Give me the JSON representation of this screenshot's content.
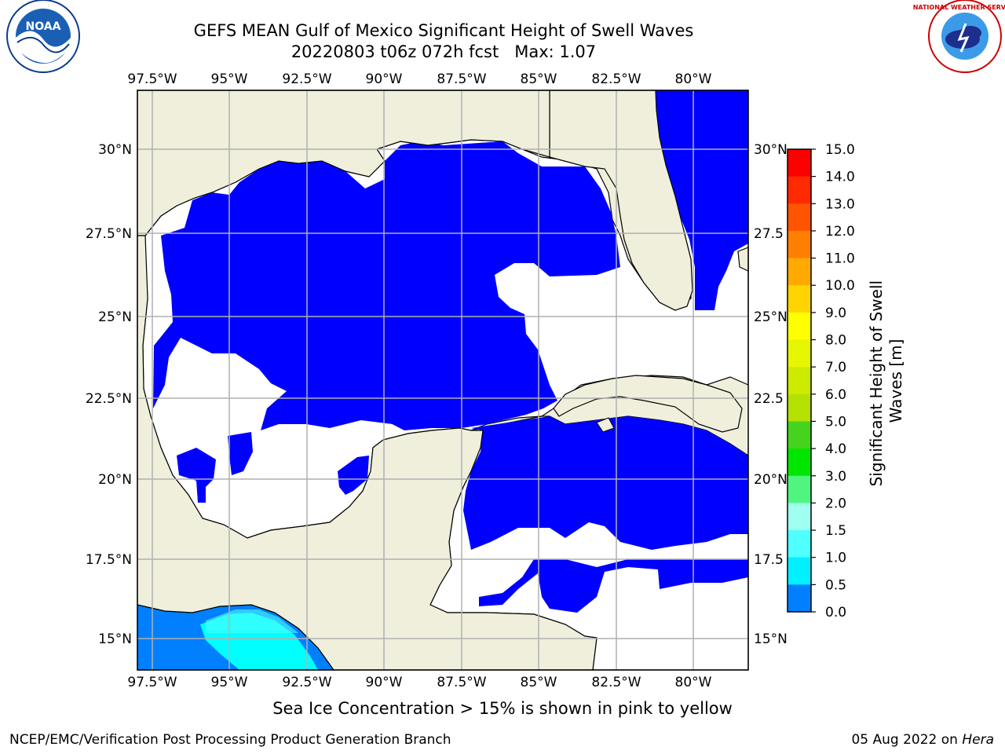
{
  "header": {
    "title": "GEFS MEAN Gulf of Mexico Significant Height of Swell Waves",
    "subtitle": "20220803 t06z 072h fcst   Max: 1.07"
  },
  "logos": {
    "left": "noaa-logo",
    "left_text": "NOAA",
    "right": "nws-logo",
    "right_text": "NATIONAL WEATHER SERVICE"
  },
  "map": {
    "lon_labels": [
      "97.5°W",
      "95°W",
      "92.5°W",
      "90°W",
      "87.5°W",
      "85°W",
      "82.5°W",
      "80°W"
    ],
    "lat_labels_left": [
      "30°N",
      "27.5°N",
      "25°N",
      "22.5°N",
      "20°N",
      "17.5°N",
      "15°N"
    ],
    "lat_labels_right": [
      "30°N",
      "27.5",
      "25°N",
      "22.5",
      "20°N",
      "17.5",
      "15°N"
    ],
    "colors": {
      "land": "#efefdc",
      "ocean_fill": "#0000ff",
      "grid": "#b0b0b0"
    }
  },
  "colorbar": {
    "label_line1": "Significant Height of Swell",
    "label_line2": "Waves [m]",
    "ticks": [
      "15.0",
      "14.0",
      "13.0",
      "12.0",
      "11.0",
      "10.0",
      "9.0",
      "8.0",
      "7.0",
      "6.0",
      "5.0",
      "4.0",
      "3.0",
      "2.0",
      "1.5",
      "1.0",
      "0.5",
      "0.0"
    ],
    "colors": [
      "#ff0000",
      "#ff2a00",
      "#ff5500",
      "#ff8000",
      "#ffaa00",
      "#ffd400",
      "#ffff00",
      "#e6f500",
      "#cdeb00",
      "#b4e100",
      "#46d31e",
      "#00e600",
      "#50f580",
      "#a0fff0",
      "#50ffff",
      "#00f0ff",
      "#0080ff",
      "#0000ff"
    ]
  },
  "footer": {
    "ice_note": "Sea Ice Concentration > 15% is shown in pink to yellow",
    "left": "NCEP/EMC/Verification Post Processing Product Generation Branch",
    "right_date": "05 Aug 2022 on ",
    "right_host": "Hera"
  }
}
